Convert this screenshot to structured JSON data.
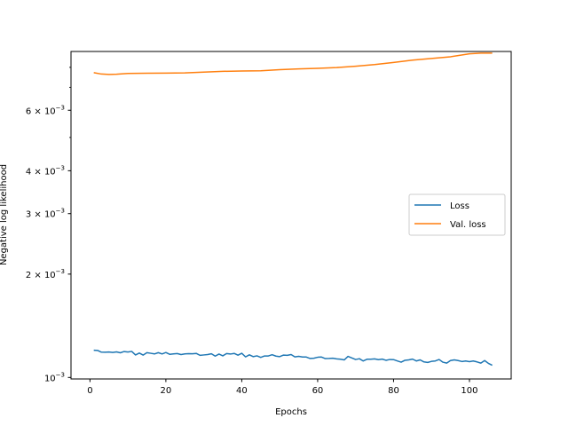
{
  "chart_data": {
    "type": "line",
    "xlabel": "Epochs",
    "ylabel": "Negative log likelihood",
    "xlim": [
      -5,
      111
    ],
    "ylim": [
      0.00099,
      0.0089
    ],
    "yscale": "log",
    "xticks": [
      {
        "value": 0,
        "label": "0"
      },
      {
        "value": 20,
        "label": "20"
      },
      {
        "value": 40,
        "label": "40"
      },
      {
        "value": 60,
        "label": "60"
      },
      {
        "value": 80,
        "label": "80"
      },
      {
        "value": 100,
        "label": "100"
      }
    ],
    "yticks": [
      {
        "value": 0.001,
        "mantissa": "10",
        "exponent": "−3"
      },
      {
        "value": 0.002,
        "mantissa": "2 × 10",
        "exponent": "−3"
      },
      {
        "value": 0.003,
        "mantissa": "3 × 10",
        "exponent": "−3"
      },
      {
        "value": 0.004,
        "mantissa": "4 × 10",
        "exponent": "−3"
      },
      {
        "value": 0.006,
        "mantissa": "6 × 10",
        "exponent": "−3"
      }
    ],
    "legend": "center-right",
    "grid": false,
    "series": [
      {
        "name": "Loss",
        "color": "#1f77b4",
        "points": [
          [
            1,
            0.0012
          ],
          [
            2,
            0.001199
          ],
          [
            3,
            0.001185
          ],
          [
            4,
            0.001184
          ],
          [
            5,
            0.001186
          ],
          [
            6,
            0.001183
          ],
          [
            7,
            0.001187
          ],
          [
            8,
            0.00118
          ],
          [
            9,
            0.00119
          ],
          [
            10,
            0.001186
          ],
          [
            11,
            0.001191
          ],
          [
            12,
            0.001163
          ],
          [
            13,
            0.001178
          ],
          [
            14,
            0.001162
          ],
          [
            15,
            0.001181
          ],
          [
            16,
            0.001176
          ],
          [
            17,
            0.001171
          ],
          [
            18,
            0.001181
          ],
          [
            19,
            0.001171
          ],
          [
            20,
            0.001182
          ],
          [
            21,
            0.001168
          ],
          [
            22,
            0.001171
          ],
          [
            23,
            0.001174
          ],
          [
            24,
            0.001166
          ],
          [
            25,
            0.001171
          ],
          [
            26,
            0.001173
          ],
          [
            27,
            0.001172
          ],
          [
            28,
            0.001175
          ],
          [
            29,
            0.00116
          ],
          [
            30,
            0.001163
          ],
          [
            31,
            0.001166
          ],
          [
            32,
            0.001172
          ],
          [
            33,
            0.001154
          ],
          [
            34,
            0.00117
          ],
          [
            35,
            0.001156
          ],
          [
            36,
            0.001174
          ],
          [
            37,
            0.00117
          ],
          [
            38,
            0.001175
          ],
          [
            39,
            0.001161
          ],
          [
            40,
            0.001176
          ],
          [
            41,
            0.001148
          ],
          [
            42,
            0.001164
          ],
          [
            43,
            0.00115
          ],
          [
            44,
            0.001156
          ],
          [
            45,
            0.001144
          ],
          [
            46,
            0.001155
          ],
          [
            47,
            0.001155
          ],
          [
            48,
            0.001165
          ],
          [
            49,
            0.001154
          ],
          [
            50,
            0.00115
          ],
          [
            51,
            0.001162
          ],
          [
            52,
            0.00116
          ],
          [
            53,
            0.001166
          ],
          [
            54,
            0.001148
          ],
          [
            55,
            0.001152
          ],
          [
            56,
            0.001147
          ],
          [
            57,
            0.001147
          ],
          [
            58,
            0.001136
          ],
          [
            59,
            0.001138
          ],
          [
            60,
            0.001145
          ],
          [
            61,
            0.001147
          ],
          [
            62,
            0.001135
          ],
          [
            63,
            0.001136
          ],
          [
            64,
            0.001138
          ],
          [
            65,
            0.001133
          ],
          [
            66,
            0.00113
          ],
          [
            67,
            0.001125
          ],
          [
            68,
            0.001152
          ],
          [
            69,
            0.00114
          ],
          [
            70,
            0.001128
          ],
          [
            71,
            0.001134
          ],
          [
            72,
            0.001117
          ],
          [
            73,
            0.00113
          ],
          [
            74,
            0.00113
          ],
          [
            75,
            0.001133
          ],
          [
            76,
            0.001127
          ],
          [
            77,
            0.001131
          ],
          [
            78,
            0.001122
          ],
          [
            79,
            0.001128
          ],
          [
            80,
            0.001127
          ],
          [
            81,
            0.001117
          ],
          [
            82,
            0.001108
          ],
          [
            83,
            0.001122
          ],
          [
            84,
            0.001125
          ],
          [
            85,
            0.001131
          ],
          [
            86,
            0.001117
          ],
          [
            87,
            0.001125
          ],
          [
            88,
            0.00111
          ],
          [
            89,
            0.001106
          ],
          [
            90,
            0.001114
          ],
          [
            91,
            0.001117
          ],
          [
            92,
            0.001128
          ],
          [
            93,
            0.001108
          ],
          [
            94,
            0.001101
          ],
          [
            95,
            0.00112
          ],
          [
            96,
            0.001125
          ],
          [
            97,
            0.00112
          ],
          [
            98,
            0.001113
          ],
          [
            99,
            0.001117
          ],
          [
            100,
            0.001112
          ],
          [
            101,
            0.001117
          ],
          [
            102,
            0.00111
          ],
          [
            103,
            0.001101
          ],
          [
            104,
            0.00112
          ],
          [
            105,
            0.001099
          ],
          [
            106,
            0.001085
          ]
        ]
      },
      {
        "name": "Val. loss",
        "color": "#ff7f0e",
        "points": [
          [
            1,
            0.00772
          ],
          [
            3,
            0.00765
          ],
          [
            5,
            0.00763
          ],
          [
            7,
            0.00764
          ],
          [
            10,
            0.00768
          ],
          [
            15,
            0.00769
          ],
          [
            20,
            0.0077
          ],
          [
            25,
            0.00771
          ],
          [
            30,
            0.00775
          ],
          [
            35,
            0.00779
          ],
          [
            40,
            0.00781
          ],
          [
            45,
            0.00782
          ],
          [
            50,
            0.00788
          ],
          [
            55,
            0.00792
          ],
          [
            60,
            0.00795
          ],
          [
            65,
            0.00799
          ],
          [
            70,
            0.00806
          ],
          [
            75,
            0.00815
          ],
          [
            80,
            0.00827
          ],
          [
            85,
            0.0084
          ],
          [
            90,
            0.00849
          ],
          [
            95,
            0.00859
          ],
          [
            100,
            0.00876
          ],
          [
            103,
            0.0088
          ],
          [
            106,
            0.0088
          ]
        ]
      }
    ]
  }
}
